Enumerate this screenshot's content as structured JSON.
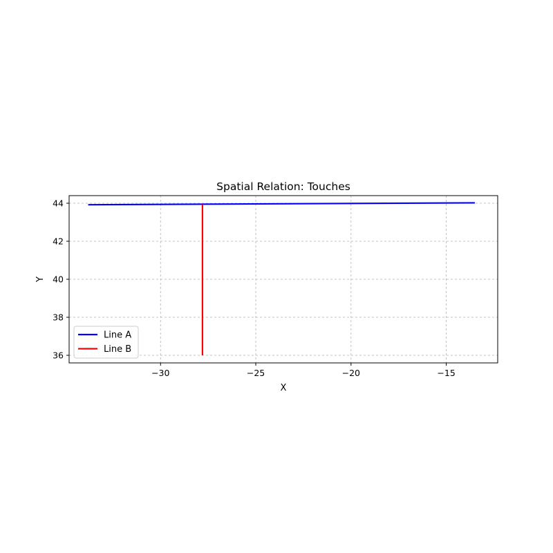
{
  "chart_data": {
    "type": "line",
    "title": "Spatial Relation: Touches",
    "xlabel": "X",
    "ylabel": "Y",
    "xlim": [
      -34.8,
      -12.3
    ],
    "ylim": [
      35.6,
      44.4
    ],
    "xticks": [
      {
        "value": -30,
        "label": "−30"
      },
      {
        "value": -25,
        "label": "−25"
      },
      {
        "value": -20,
        "label": "−20"
      },
      {
        "value": -15,
        "label": "−15"
      }
    ],
    "yticks": [
      {
        "value": 36,
        "label": "36"
      },
      {
        "value": 38,
        "label": "38"
      },
      {
        "value": 40,
        "label": "40"
      },
      {
        "value": 42,
        "label": "42"
      },
      {
        "value": 44,
        "label": "44"
      }
    ],
    "grid": true,
    "legend": "lower-left",
    "series": [
      {
        "name": "Line A",
        "color": "#0000ff",
        "points": [
          [
            -33.8,
            43.92
          ],
          [
            -13.5,
            44.02
          ]
        ]
      },
      {
        "name": "Line B",
        "color": "#ff0000",
        "points": [
          [
            -27.8,
            43.95
          ],
          [
            -27.8,
            36.0
          ]
        ]
      }
    ]
  }
}
